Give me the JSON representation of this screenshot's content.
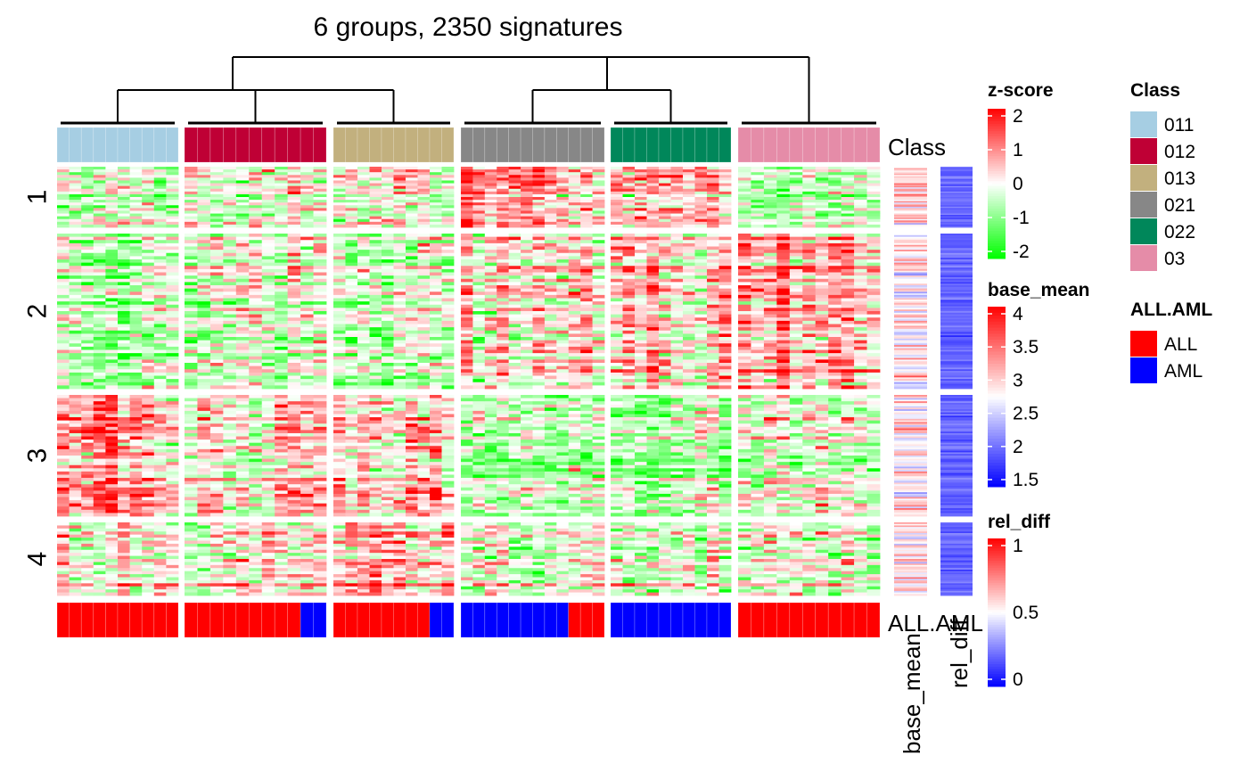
{
  "chart_data": {
    "type": "heatmap",
    "title": "6 groups, 2350 signatures",
    "column_groups": [
      {
        "class": "011",
        "n_columns": 10,
        "all_aml": [
          "ALL",
          "ALL",
          "ALL",
          "ALL",
          "ALL",
          "ALL",
          "ALL",
          "ALL",
          "ALL",
          "ALL"
        ]
      },
      {
        "class": "012",
        "n_columns": 11,
        "all_aml": [
          "ALL",
          "ALL",
          "ALL",
          "ALL",
          "ALL",
          "ALL",
          "ALL",
          "ALL",
          "ALL",
          "AML",
          "AML"
        ]
      },
      {
        "class": "013",
        "n_columns": 10,
        "all_aml": [
          "ALL",
          "ALL",
          "ALL",
          "ALL",
          "ALL",
          "ALL",
          "ALL",
          "ALL",
          "AML",
          "AML"
        ]
      },
      {
        "class": "021",
        "n_columns": 12,
        "all_aml": [
          "AML",
          "AML",
          "AML",
          "AML",
          "AML",
          "AML",
          "AML",
          "AML",
          "AML",
          "ALL",
          "ALL",
          "ALL"
        ]
      },
      {
        "class": "022",
        "n_columns": 10,
        "all_aml": [
          "AML",
          "AML",
          "AML",
          "AML",
          "AML",
          "AML",
          "AML",
          "AML",
          "AML",
          "AML"
        ]
      },
      {
        "class": "03",
        "n_columns": 11,
        "all_aml": [
          "ALL",
          "ALL",
          "ALL",
          "ALL",
          "ALL",
          "ALL",
          "ALL",
          "ALL",
          "ALL",
          "ALL",
          "ALL"
        ]
      }
    ],
    "row_groups": [
      {
        "label": "1",
        "mean_zscore_by_group": [
          -0.3,
          -0.2,
          -0.1,
          0.6,
          0.5,
          -0.3
        ]
      },
      {
        "label": "2",
        "mean_zscore_by_group": [
          -0.6,
          -0.2,
          -0.3,
          0.2,
          0.3,
          0.5
        ]
      },
      {
        "label": "3",
        "mean_zscore_by_group": [
          0.7,
          0.3,
          0.3,
          -0.4,
          -0.5,
          -0.2
        ]
      },
      {
        "label": "4",
        "mean_zscore_by_group": [
          0.2,
          0.1,
          0.5,
          0.0,
          -0.2,
          0.0
        ]
      }
    ],
    "annotations": {
      "top": "Class",
      "bottom": "ALL.AML",
      "right": [
        "base_mean",
        "rel_diff"
      ]
    },
    "legends": {
      "zscore": {
        "title": "z-score",
        "ticks": [
          "2",
          "1",
          "0",
          "-1",
          "-2"
        ],
        "range": [
          -2,
          2
        ],
        "colors": [
          "#00FF00",
          "#FFFFFF",
          "#FF0000"
        ]
      },
      "base_mean": {
        "title": "base_mean",
        "ticks": [
          "4",
          "3.5",
          "3",
          "2.5",
          "2",
          "1.5"
        ],
        "range": [
          1.5,
          4
        ],
        "colors": [
          "#0000FF",
          "#FFFFFF",
          "#FF0000"
        ]
      },
      "rel_diff": {
        "title": "rel_diff",
        "ticks": [
          "1",
          "0.5",
          "0"
        ],
        "range": [
          0,
          1
        ],
        "colors": [
          "#0000FF",
          "#FFFFFF",
          "#FF0000"
        ]
      },
      "class": {
        "title": "Class",
        "entries": [
          {
            "label": "011",
            "color": "#A6CEE3"
          },
          {
            "label": "012",
            "color": "#BF0035"
          },
          {
            "label": "013",
            "color": "#C2B07E"
          },
          {
            "label": "021",
            "color": "#878787"
          },
          {
            "label": "022",
            "color": "#00875A"
          },
          {
            "label": "03",
            "color": "#E58CA8"
          }
        ]
      },
      "all_aml": {
        "title": "ALL.AML",
        "entries": [
          {
            "label": "ALL",
            "color": "#FF0000"
          },
          {
            "label": "AML",
            "color": "#0000FF"
          }
        ]
      }
    }
  }
}
